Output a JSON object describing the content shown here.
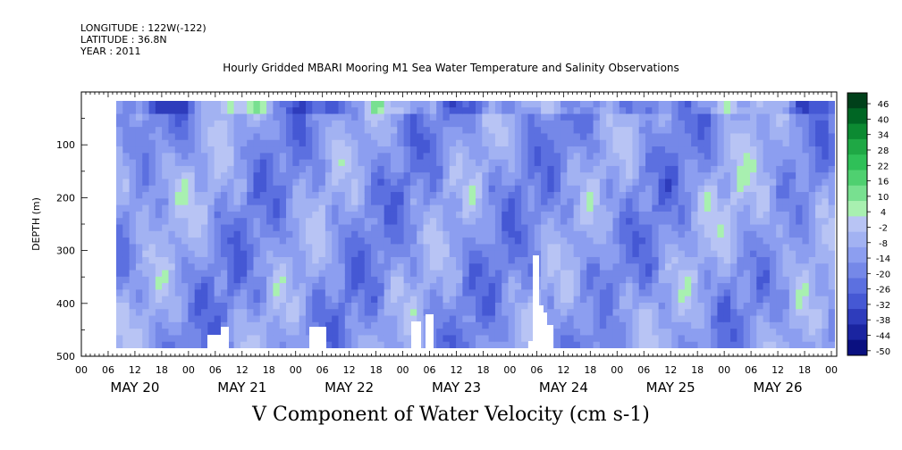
{
  "header": {
    "longitude": "LONGITUDE : 122W(-122)",
    "latitude": "LATITUDE : 36.8N",
    "year": "YEAR : 2011",
    "title": "Hourly Gridded MBARI Mooring M1 Sea Water Temperature and Salinity Observations",
    "variable_title": "V Component of Water Velocity (cm s-1)"
  },
  "chart_data": {
    "type": "heatmap",
    "ylabel": "DEPTH (m)",
    "y_ticks": [
      100,
      200,
      300,
      400,
      500
    ],
    "ylim": [
      500,
      0
    ],
    "y_inverted": true,
    "hour_ticks": [
      "00",
      "06",
      "12",
      "18",
      "00",
      "06",
      "12",
      "18",
      "00",
      "06",
      "12",
      "18",
      "00",
      "06",
      "12",
      "18",
      "00",
      "06",
      "12",
      "18",
      "00",
      "06",
      "12",
      "18",
      "00",
      "06",
      "12",
      "18",
      "00"
    ],
    "day_labels": [
      "MAY 20",
      "MAY 21",
      "MAY 22",
      "MAY 23",
      "MAY 24",
      "MAY 25",
      "MAY 26"
    ],
    "x_range_hours": [
      0,
      168
    ],
    "colorbar": {
      "labels": [
        "46",
        "40",
        "34",
        "28",
        "22",
        "16",
        "10",
        "4",
        "-2",
        "-8",
        "-14",
        "-20",
        "-26",
        "-32",
        "-38",
        "-44",
        "-50"
      ],
      "range": [
        -50,
        52
      ]
    },
    "colors": {
      "strong_positive": "#006020",
      "positive": "#2fd060",
      "weak_positive": "#a8f0b0",
      "weak_negative": "#b8c4f4",
      "negative": "#7088e8",
      "strong_negative": "#0a1890"
    }
  }
}
